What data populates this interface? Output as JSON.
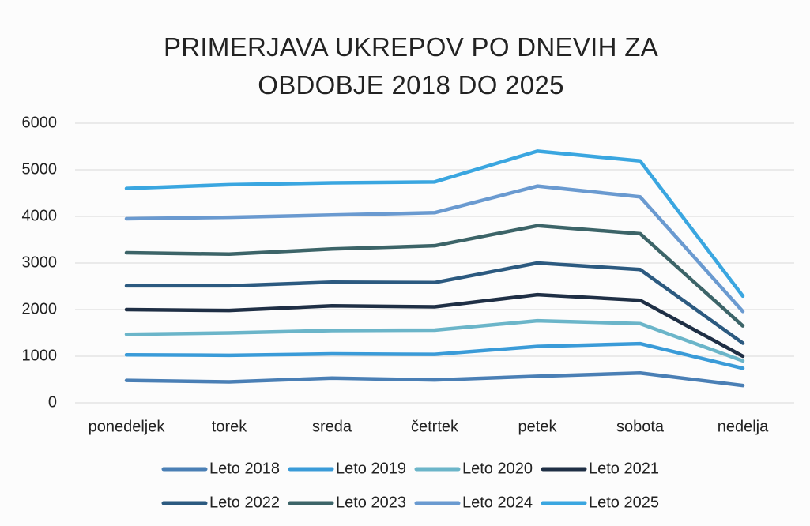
{
  "chart_data": {
    "type": "line",
    "title": "PRIMERJAVA UKREPOV PO DNEVIH ZA OBDOBJE 2018 DO 2025",
    "categories": [
      "ponedeljek",
      "torek",
      "sreda",
      "četrtek",
      "petek",
      "sobota",
      "nedelja"
    ],
    "series": [
      {
        "name": "Leto 2018",
        "color": "#4a7fb5",
        "values": [
          480,
          450,
          530,
          490,
          570,
          640,
          370
        ]
      },
      {
        "name": "Leto 2019",
        "color": "#3a9bd8",
        "values": [
          1030,
          1020,
          1050,
          1040,
          1210,
          1270,
          740
        ]
      },
      {
        "name": "Leto 2020",
        "color": "#6bb5c9",
        "values": [
          1470,
          1500,
          1550,
          1560,
          1760,
          1700,
          900
        ]
      },
      {
        "name": "Leto 2021",
        "color": "#1f2f45",
        "values": [
          2000,
          1980,
          2080,
          2060,
          2320,
          2200,
          1000
        ]
      },
      {
        "name": "Leto 2022",
        "color": "#2c5a80",
        "values": [
          2510,
          2510,
          2590,
          2580,
          3000,
          2860,
          1280
        ]
      },
      {
        "name": "Leto 2023",
        "color": "#3c6468",
        "values": [
          3220,
          3190,
          3300,
          3370,
          3800,
          3630,
          1650
        ]
      },
      {
        "name": "Leto 2024",
        "color": "#6a9ad0",
        "values": [
          3950,
          3980,
          4030,
          4080,
          4650,
          4420,
          1960
        ]
      },
      {
        "name": "Leto 2025",
        "color": "#3aa6e0",
        "values": [
          4600,
          4680,
          4720,
          4740,
          5400,
          5190,
          2290
        ]
      }
    ],
    "ylim": [
      0,
      6000
    ],
    "yticks": [
      0,
      1000,
      2000,
      3000,
      4000,
      5000,
      6000
    ],
    "grid": true,
    "legend": "bottom"
  }
}
